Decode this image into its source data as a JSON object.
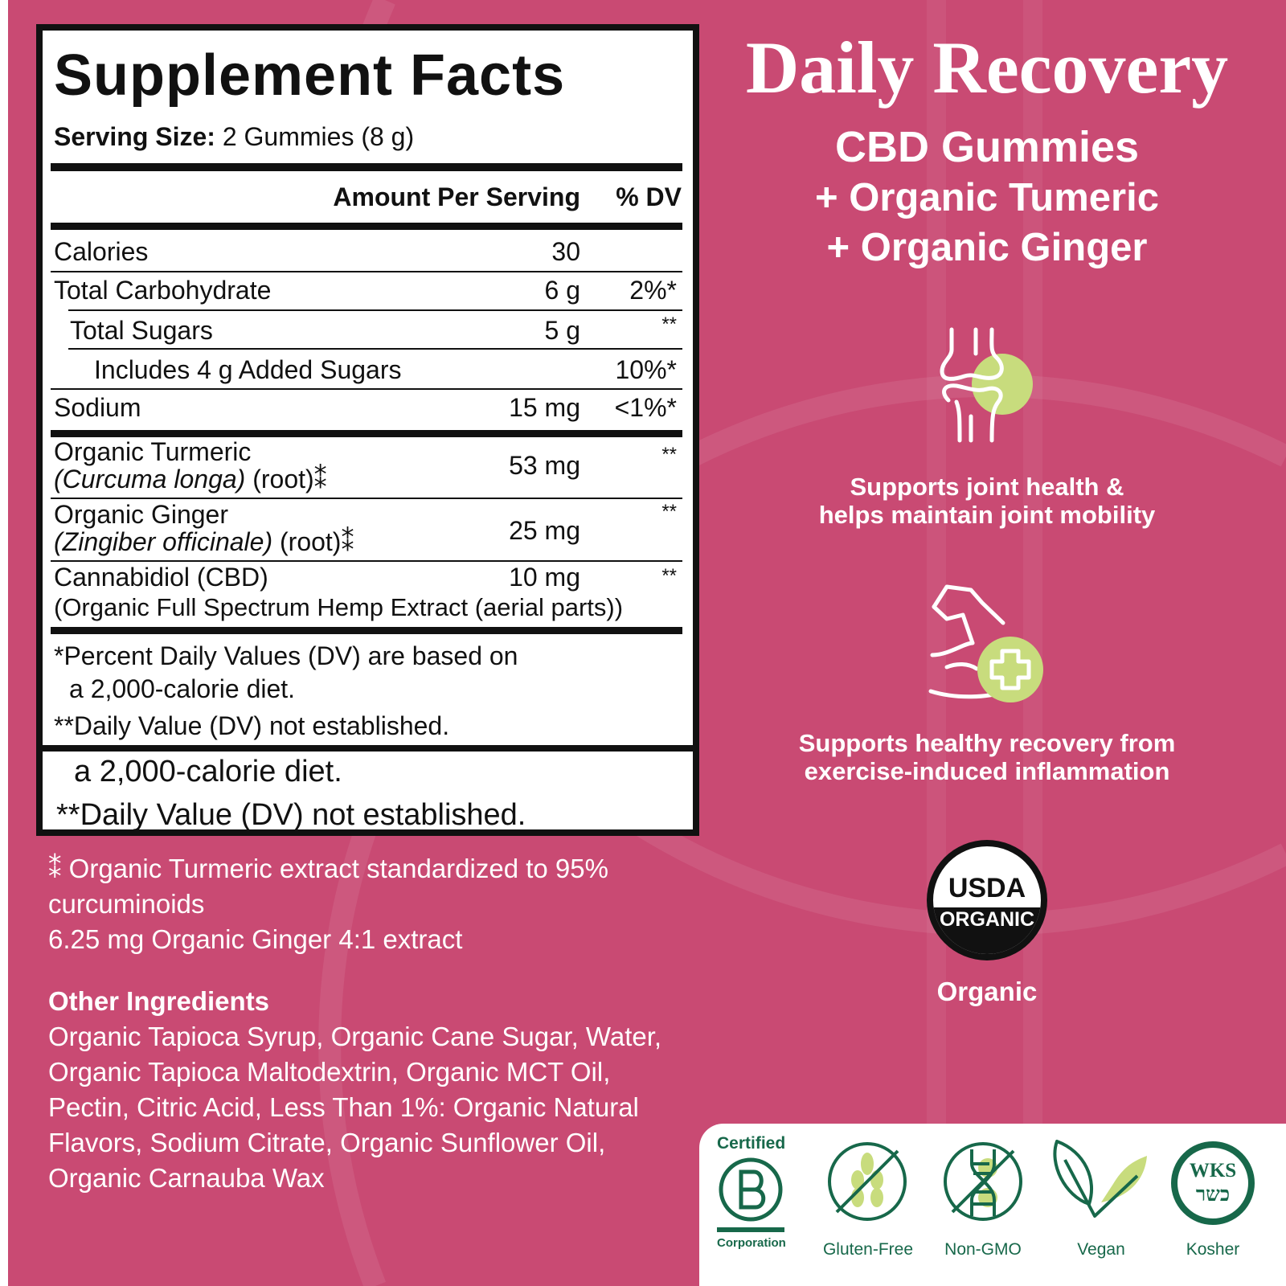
{
  "facts": {
    "title": "Supplement Facts",
    "serving_label": "Serving Size:",
    "serving_value": "2 Gummies (8 g)",
    "header_amount": "Amount Per Serving",
    "header_dv": "% DV",
    "rows": [
      {
        "name": "Calories",
        "amount": "30",
        "dv": ""
      },
      {
        "name": "Total Carbohydrate",
        "amount": "6 g",
        "dv": "2%*"
      },
      {
        "name": "Total Sugars",
        "amount": "5 g",
        "dv": "**"
      },
      {
        "name": "Includes 4 g Added Sugars",
        "amount": "",
        "dv": "10%*"
      },
      {
        "name": "Sodium",
        "amount": "15 mg",
        "dv": "<1%*"
      },
      {
        "name": "Organic Turmeric",
        "latin": "(Curcuma longa)",
        "part": "(root)⁑",
        "amount": "53 mg",
        "dv": "**"
      },
      {
        "name": "Organic Ginger",
        "latin": "(Zingiber officinale)",
        "part": "(root)⁑",
        "amount": "25 mg",
        "dv": "**"
      },
      {
        "name": "Cannabidiol (CBD)",
        "sub": "(Organic Full Spectrum Hemp Extract (aerial parts))",
        "amount": "10 mg",
        "dv": "**"
      }
    ],
    "footnote_1a": "*Percent Daily Values (DV) are based on",
    "footnote_1b": "a 2,000-calorie diet.",
    "footnote_2": "**Daily Value (DV) not established.",
    "dup_footnote_1b": "a 2,000-calorie diet.",
    "dup_footnote_2": "**Daily Value (DV) not established."
  },
  "notes": {
    "line1": "⁑ Organic Turmeric extract standardized to 95%",
    "line2": "curcuminoids",
    "line3": "6.25 mg Organic Ginger 4:1 extract"
  },
  "other_ingredients": {
    "heading": "Other Ingredients",
    "lines": [
      "Organic Tapioca Syrup, Organic Cane Sugar, Water,",
      "Organic Tapioca Maltodextrin, Organic MCT Oil,",
      "Pectin, Citric Acid, Less Than 1%: Organic Natural",
      "Flavors, Sodium Citrate, Organic Sunflower Oil,",
      "Organic Carnauba Wax"
    ]
  },
  "product": {
    "title": "Daily Recovery",
    "subtitle": "CBD Gummies",
    "line2": "+ Organic Tumeric",
    "line3": "+ Organic Ginger"
  },
  "benefits": [
    {
      "icon": "joint-icon",
      "line1": "Supports joint health &",
      "line2": "helps maintain joint mobility"
    },
    {
      "icon": "muscle-plus-icon",
      "line1": "Supports healthy recovery from",
      "line2": "exercise-induced inflammation"
    }
  ],
  "usda": {
    "top": "USDA",
    "band": "ORGANIC",
    "label": "Organic"
  },
  "certifications": [
    {
      "icon": "b-corp-icon",
      "top": "Certified",
      "label": "Corporation"
    },
    {
      "icon": "gluten-free-icon",
      "label": "Gluten-Free"
    },
    {
      "icon": "non-gmo-icon",
      "label": "Non-GMO"
    },
    {
      "icon": "vegan-icon",
      "label": "Vegan"
    },
    {
      "icon": "kosher-icon",
      "label": "Kosher",
      "mark": "WKS כשר"
    }
  ],
  "colors": {
    "background": "#c94a73",
    "accent_green": "#c8dc7d",
    "cert_green": "#17684a"
  }
}
